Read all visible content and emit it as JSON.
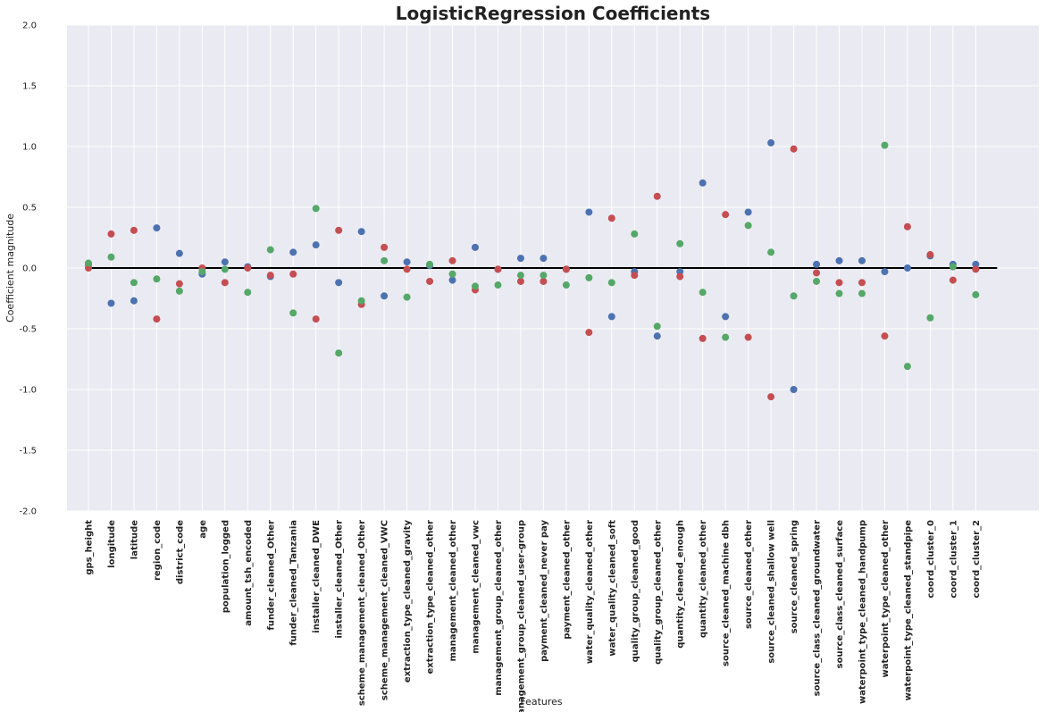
{
  "chart_data": {
    "type": "scatter",
    "title": "LogisticRegression Coefficients",
    "xlabel": "Features",
    "ylabel": "Coefficient magnitude",
    "ylim": [
      -2.0,
      2.0
    ],
    "yticks": [
      "-2.0",
      "-1.5",
      "-1.0",
      "-0.5",
      "0.0",
      "0.5",
      "1.0",
      "1.5",
      "2.0"
    ],
    "grid": true,
    "background_color": "#eaeaf2",
    "zero_line_color": "#000000",
    "categories": [
      "gps_height",
      "longitude",
      "latitude",
      "region_code",
      "district_code",
      "age",
      "population_logged",
      "amount_tsh_encoded",
      "funder_cleaned_Other",
      "funder_cleaned_Tanzania",
      "installer_cleaned_DWE",
      "installer_cleaned_Other",
      "scheme_management_cleaned_Other",
      "scheme_management_cleaned_VWC",
      "extraction_type_cleaned_gravity",
      "extraction_type_cleaned_other",
      "management_cleaned_other",
      "management_cleaned_vwc",
      "management_group_cleaned_other",
      "management_group_cleaned_user-group",
      "payment_cleaned_never pay",
      "payment_cleaned_other",
      "water_quality_cleaned_other",
      "water_quality_cleaned_soft",
      "quality_group_cleaned_good",
      "quality_group_cleaned_other",
      "quantity_cleaned_enough",
      "quantity_cleaned_other",
      "source_cleaned_machine dbh",
      "source_cleaned_other",
      "source_cleaned_shallow well",
      "source_cleaned_spring",
      "source_class_cleaned_groundwater",
      "source_class_cleaned_surface",
      "waterpoint_type_cleaned_handpump",
      "waterpoint_type_cleaned_other",
      "waterpoint_type_cleaned_standpipe",
      "coord_cluster_0",
      "coord_cluster_1",
      "coord_cluster_2"
    ],
    "series": [
      {
        "color": "#4c72b0",
        "values": [
          0.03,
          -0.29,
          -0.27,
          0.33,
          0.12,
          -0.05,
          0.05,
          0.01,
          -0.07,
          0.13,
          0.19,
          -0.12,
          0.3,
          -0.23,
          0.05,
          0.02,
          -0.1,
          0.17,
          -0.01,
          0.08,
          0.08,
          -0.01,
          0.46,
          -0.4,
          -0.03,
          -0.56,
          -0.03,
          0.7,
          -0.4,
          0.46,
          1.03,
          -1.0,
          0.03,
          0.06,
          0.06,
          -0.03,
          0.0,
          0.1,
          0.03,
          0.03
        ]
      },
      {
        "color": "#c44e52",
        "values": [
          0.0,
          0.28,
          0.31,
          -0.42,
          -0.13,
          0.0,
          -0.12,
          0.0,
          -0.06,
          -0.05,
          -0.42,
          0.31,
          -0.3,
          0.17,
          -0.01,
          -0.11,
          0.06,
          -0.18,
          -0.01,
          -0.11,
          -0.11,
          -0.01,
          -0.53,
          0.41,
          -0.06,
          0.59,
          -0.07,
          -0.58,
          0.44,
          -0.57,
          -1.06,
          0.98,
          -0.04,
          -0.12,
          -0.12,
          -0.56,
          0.34,
          0.11,
          -0.1,
          -0.01
        ]
      },
      {
        "color": "#55a868",
        "values": [
          0.04,
          0.09,
          -0.12,
          -0.09,
          -0.19,
          -0.03,
          -0.01,
          -0.2,
          0.15,
          -0.37,
          0.49,
          -0.7,
          -0.27,
          0.06,
          -0.24,
          0.03,
          -0.05,
          -0.15,
          -0.14,
          -0.06,
          -0.06,
          -0.14,
          -0.08,
          -0.12,
          0.28,
          -0.48,
          0.2,
          -0.2,
          -0.57,
          0.35,
          0.13,
          -0.23,
          -0.11,
          -0.21,
          -0.21,
          1.01,
          -0.81,
          -0.41,
          0.01,
          -0.22
        ]
      }
    ]
  }
}
